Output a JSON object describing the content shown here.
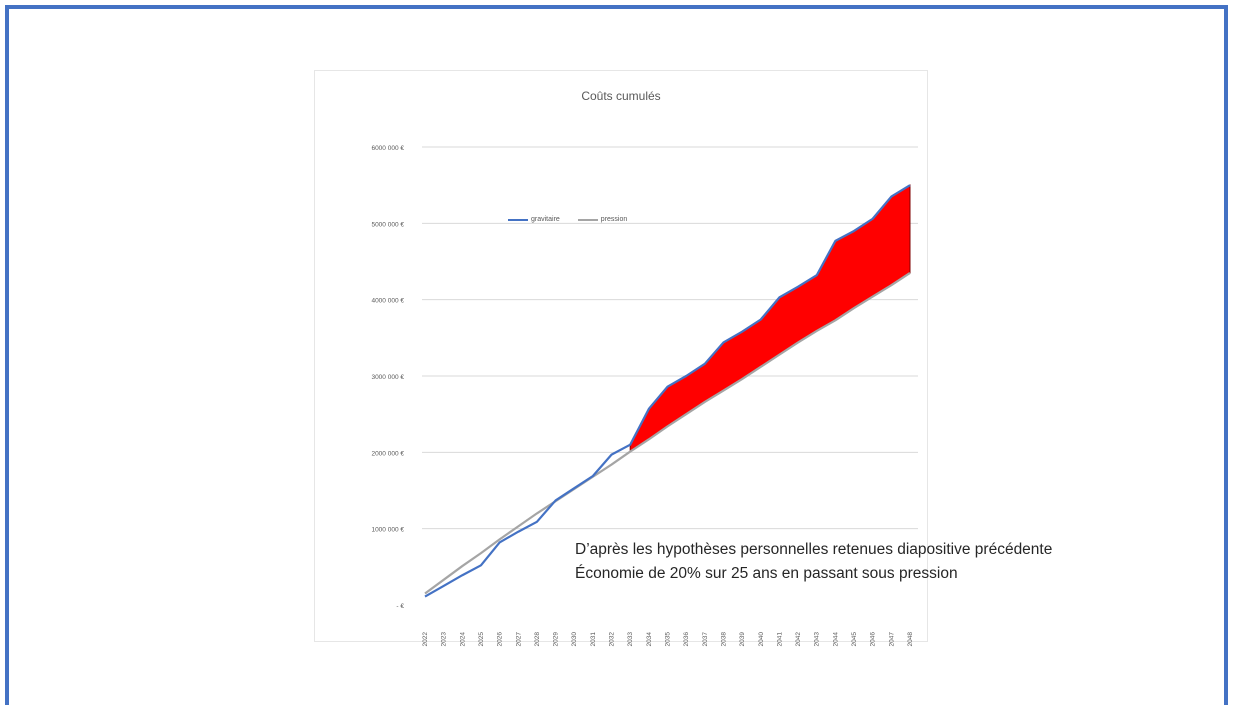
{
  "chart_data": {
    "type": "area",
    "title": "Coûts cumulés",
    "xlabel": "",
    "ylabel": "",
    "categories": [
      "2022",
      "2023",
      "2024",
      "2025",
      "2026",
      "2027",
      "2028",
      "2029",
      "2030",
      "2031",
      "2032",
      "2033",
      "2034",
      "2035",
      "2036",
      "2037",
      "2038",
      "2039",
      "2040",
      "2041",
      "2042",
      "2043",
      "2044",
      "2045",
      "2046",
      "2047",
      "2048"
    ],
    "y_ticks": [
      0,
      1000000,
      2000000,
      3000000,
      4000000,
      5000000,
      6000000
    ],
    "y_tick_labels": [
      "-   €",
      "1000 000 €",
      "2000 000 €",
      "3000 000 €",
      "4000 000 €",
      "5000 000 €",
      "6000 000 €"
    ],
    "ylim": [
      0,
      6000000
    ],
    "grid": true,
    "legend_position": "top-center",
    "series": [
      {
        "name": "gravitaire",
        "color": "#4472c4",
        "values": [
          110000,
          250000,
          390000,
          520000,
          820000,
          960000,
          1090000,
          1370000,
          1530000,
          1690000,
          1970000,
          2100000,
          2570000,
          2860000,
          3000000,
          3160000,
          3440000,
          3580000,
          3740000,
          4030000,
          4170000,
          4320000,
          4770000,
          4900000,
          5060000,
          5350000,
          5500000
        ]
      },
      {
        "name": "pression",
        "color": "#a5a5a5",
        "values": [
          150000,
          330000,
          510000,
          680000,
          860000,
          1030000,
          1200000,
          1360000,
          1520000,
          1680000,
          1840000,
          2010000,
          2170000,
          2340000,
          2500000,
          2660000,
          2810000,
          2960000,
          3120000,
          3280000,
          3440000,
          3590000,
          3730000,
          3890000,
          4040000,
          4190000,
          4350000
        ]
      }
    ],
    "fill_between": {
      "color": "#ff0000",
      "stroke": "#7f0000"
    }
  },
  "legend": {
    "gravitaire": "gravitaire",
    "pression": "pression"
  },
  "annotation": {
    "line1": "D’après les hypothèses personnelles retenues diapositive précédente",
    "line2": "Économie de 20% sur 25 ans en passant sous pression"
  },
  "colors": {
    "frame_border": "#4472c4",
    "gridline": "#d9d9d9",
    "tick_text": "#595959"
  }
}
